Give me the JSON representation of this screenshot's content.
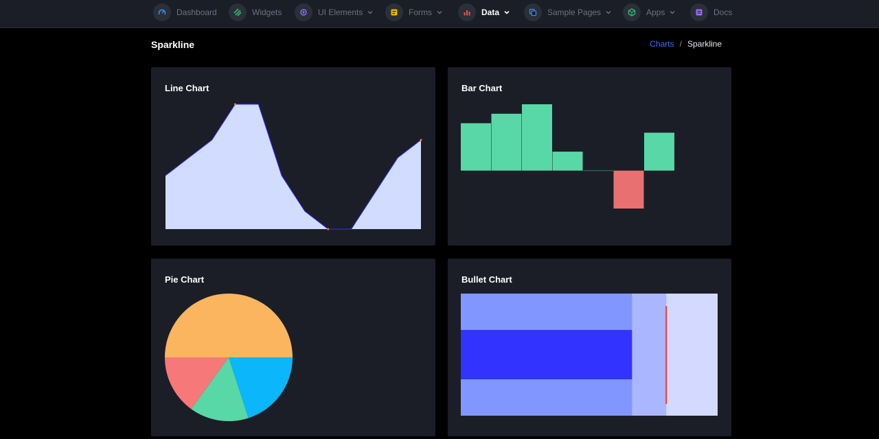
{
  "nav": {
    "items": [
      {
        "label": "Dashboard",
        "icon": "gauge-icon",
        "color": "#3a8dde",
        "dropdown": false,
        "active": false
      },
      {
        "label": "Widgets",
        "icon": "widgets-icon",
        "color": "#2fbf71",
        "dropdown": false,
        "active": false
      },
      {
        "label": "UI Elements",
        "icon": "target-icon",
        "color": "#9b6bff",
        "dropdown": true,
        "active": false
      },
      {
        "label": "Forms",
        "icon": "form-icon",
        "color": "#f4b400",
        "dropdown": true,
        "active": false
      },
      {
        "label": "Data",
        "icon": "chart-icon",
        "color": "#ef5350",
        "dropdown": true,
        "active": true
      },
      {
        "label": "Sample Pages",
        "icon": "copy-icon",
        "color": "#3a8dde",
        "dropdown": true,
        "active": false
      },
      {
        "label": "Apps",
        "icon": "cube-icon",
        "color": "#2fbf71",
        "dropdown": true,
        "active": false
      },
      {
        "label": "Docs",
        "icon": "docs-icon",
        "color": "#9b6bff",
        "dropdown": false,
        "active": false
      }
    ]
  },
  "page": {
    "title": "Sparkline",
    "breadcrumb": {
      "link": "Charts",
      "separator": "/",
      "current": "Sparkline"
    }
  },
  "cards": {
    "line": {
      "title": "Line Chart"
    },
    "bar": {
      "title": "Bar Chart"
    },
    "pie": {
      "title": "Pie Chart"
    },
    "bullet": {
      "title": "Bullet Chart"
    }
  },
  "chart_data": [
    {
      "type": "area",
      "x": [
        1,
        2,
        3,
        4,
        5,
        6,
        7,
        8,
        9,
        10,
        11,
        12
      ],
      "values": [
        5,
        6,
        7,
        9,
        9,
        5,
        3,
        2,
        2,
        4,
        6,
        7
      ],
      "ylim": [
        2,
        9
      ],
      "colors": {
        "fill": "#d2dcff",
        "line": "#3333ff",
        "marker": "#ff7f0e"
      }
    },
    {
      "type": "bar",
      "values": [
        5,
        6,
        7,
        2,
        0,
        -4,
        4
      ],
      "ylim": [
        -4,
        7
      ],
      "colors": {
        "positive": "#58d8a6",
        "negative": "#e87070",
        "zero": "#2a7f52"
      }
    },
    {
      "type": "pie",
      "values": [
        50,
        20,
        15,
        15
      ],
      "colors": [
        "#fbb55e",
        "#0bb6fa",
        "#58d8a6",
        "#f67878"
      ]
    },
    {
      "type": "bullet",
      "performance": 10,
      "target": 12,
      "ranges": [
        15,
        12,
        10
      ],
      "colors": {
        "ranges": [
          "#d3d9ff",
          "#aab6ff",
          "#8196ff"
        ],
        "performance": "#3333ff",
        "target": "#ff3333"
      }
    }
  ]
}
